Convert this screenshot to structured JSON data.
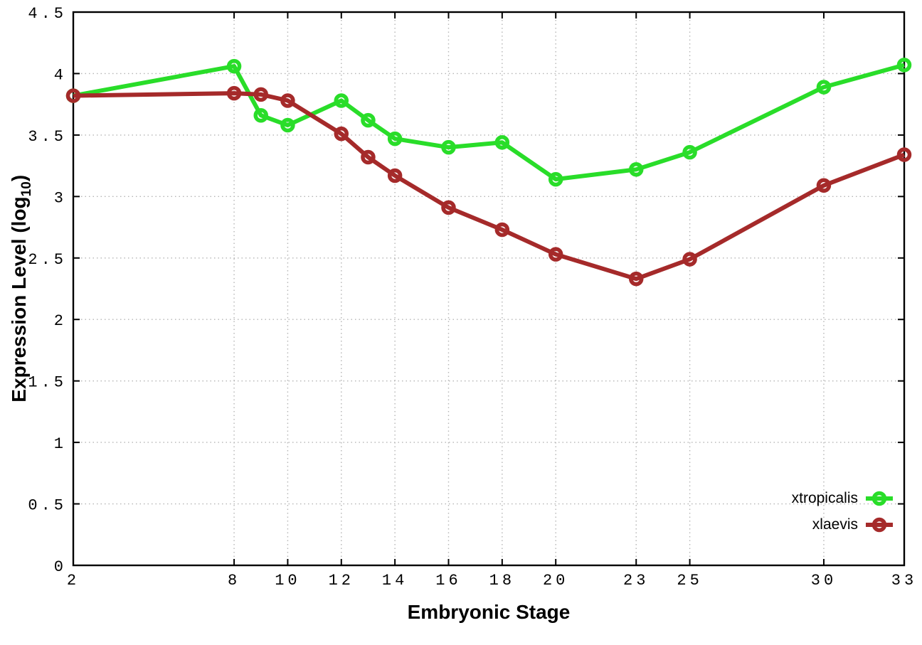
{
  "chart_data": {
    "type": "line",
    "xlabel": "Embryonic Stage",
    "ylabel": "Expression Level (log10)",
    "ylabel_main": "Expression Level (log",
    "ylabel_sub": "10",
    "ylabel_suffix": ")",
    "x": [
      2,
      8,
      9,
      10,
      12,
      13,
      14,
      16,
      18,
      20,
      23,
      25,
      30,
      33
    ],
    "x_ticks": [
      2,
      8,
      10,
      12,
      14,
      16,
      18,
      20,
      23,
      25,
      30,
      33
    ],
    "y_ticks": [
      0,
      0.5,
      1,
      1.5,
      2,
      2.5,
      3,
      3.5,
      4,
      4.5
    ],
    "xlim": [
      2,
      33
    ],
    "ylim": [
      0,
      4.5
    ],
    "grid": true,
    "grid_style": "dotted",
    "legend_position": "bottom-right-inside",
    "marker": "open-circle",
    "series": [
      {
        "name": "xtropicalis",
        "color": "#29dd29",
        "values": [
          3.82,
          4.06,
          3.66,
          3.58,
          3.78,
          3.62,
          3.47,
          3.4,
          3.44,
          3.14,
          3.22,
          3.36,
          3.89,
          4.07
        ]
      },
      {
        "name": "xlaevis",
        "color": "#a52a2a",
        "values": [
          3.82,
          3.84,
          3.83,
          3.78,
          3.51,
          3.32,
          3.17,
          2.91,
          2.73,
          2.53,
          2.33,
          2.49,
          3.09,
          3.34
        ]
      }
    ]
  },
  "colors": {
    "background": "#ffffff",
    "grid": "#b5b5b5",
    "axis": "#000000",
    "text": "#000000"
  }
}
